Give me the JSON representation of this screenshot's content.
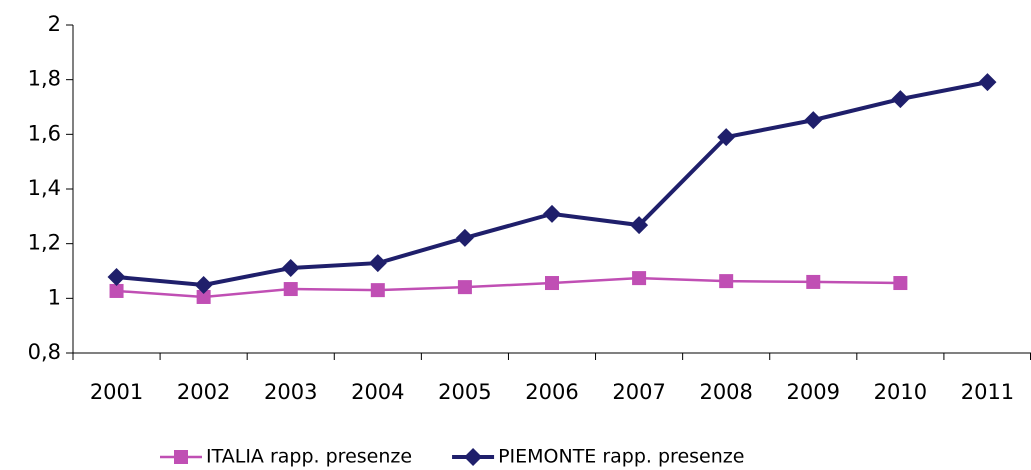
{
  "chart_data": {
    "type": "line",
    "categories": [
      "2001",
      "2002",
      "2003",
      "2004",
      "2005",
      "2006",
      "2007",
      "2008",
      "2009",
      "2010",
      "2011"
    ],
    "series": [
      {
        "name": "ITALIA rapp. presenze",
        "color": "#c04fb4",
        "marker": "square",
        "values": [
          1.027,
          1.005,
          1.034,
          1.03,
          1.041,
          1.056,
          1.074,
          1.063,
          1.06,
          1.056,
          null
        ]
      },
      {
        "name": "PIEMONTE rapp. presenze",
        "color": "#1f1f6b",
        "marker": "diamond",
        "values": [
          1.078,
          1.049,
          1.111,
          1.129,
          1.221,
          1.309,
          1.268,
          1.59,
          1.652,
          1.729,
          1.791
        ]
      }
    ],
    "ylim": [
      0.8,
      2
    ],
    "yticks": [
      {
        "value": 0.8,
        "label": "0,8"
      },
      1,
      {
        "value": 1.2,
        "label": "1,2"
      },
      {
        "value": 1.4,
        "label": "1,4"
      },
      {
        "value": 1.6,
        "label": "1,6"
      },
      {
        "value": 1.8,
        "label": "1,8"
      },
      2
    ],
    "grid": false,
    "legend": "bottom"
  }
}
